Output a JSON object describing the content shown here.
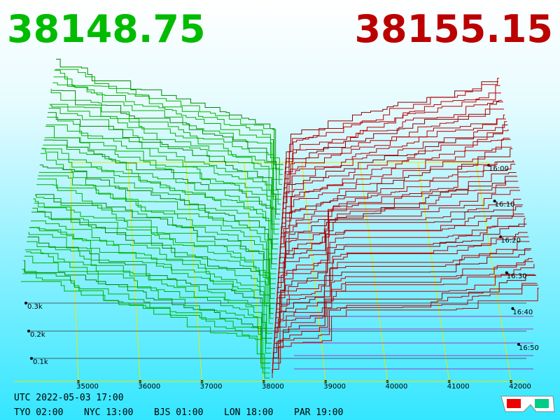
{
  "header": {
    "bid": "38148.75",
    "ask": "38155.15"
  },
  "price_axis": [
    "35000",
    "36000",
    "37000",
    "38000",
    "39000",
    "40000",
    "41000",
    "42000"
  ],
  "depth_axis": [
    "0.1k",
    "0.2k",
    "0.3k"
  ],
  "time_axis": [
    "16:00",
    "16:10",
    "16:20",
    "16:30",
    "16:40",
    "16:50"
  ],
  "footer": {
    "utc": "UTC 2022-05-03 17:00",
    "zones": [
      "TYO 02:00",
      "NYC 13:00",
      "BJS 01:00",
      "LON 18:00",
      "PAR 19:00"
    ]
  }
}
